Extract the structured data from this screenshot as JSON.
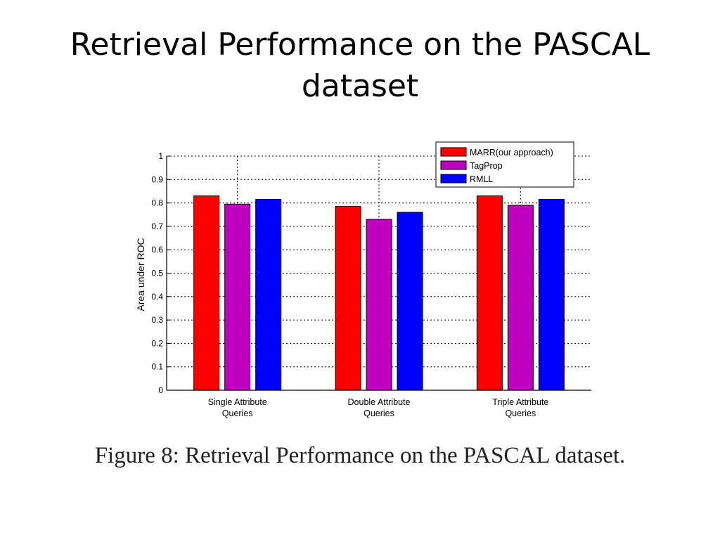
{
  "slide": {
    "title": "Retrieval Performance on the PASCAL dataset",
    "caption": "Figure 8: Retrieval Performance on the PASCAL dataset."
  },
  "chart_data": {
    "type": "bar",
    "title": "",
    "xlabel": "",
    "ylabel": "Area under ROC",
    "ylim": [
      0,
      1
    ],
    "yticks": [
      "0",
      "0.1",
      "0.2",
      "0.3",
      "0.4",
      "0.5",
      "0.6",
      "0.7",
      "0.8",
      "0.9",
      "1"
    ],
    "grid": true,
    "legend_position": "top-right",
    "categories": [
      [
        "Single Attribute",
        "Queries"
      ],
      [
        "Double Attribute",
        "Queries"
      ],
      [
        "Triple Attribute",
        "Queries"
      ]
    ],
    "series": [
      {
        "name": "MARR(our approach)",
        "color": "#ff0000",
        "values": [
          0.83,
          0.785,
          0.83
        ]
      },
      {
        "name": "TagProp",
        "color": "#c000c0",
        "values": [
          0.795,
          0.73,
          0.79
        ]
      },
      {
        "name": "RMLL",
        "color": "#0000ff",
        "values": [
          0.815,
          0.76,
          0.815
        ]
      }
    ]
  }
}
